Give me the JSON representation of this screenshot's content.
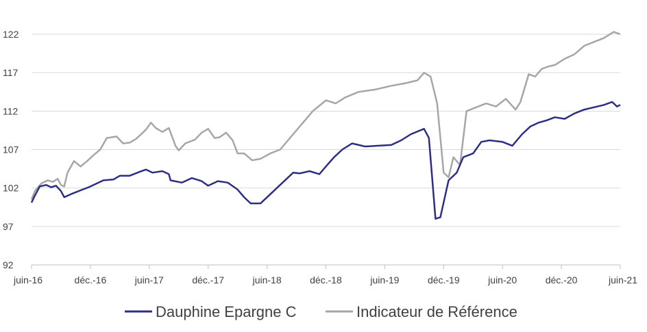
{
  "chart_data": {
    "type": "line",
    "title": "",
    "xlabel": "",
    "ylabel": "",
    "ylim": [
      92,
      122
    ],
    "yticks": [
      92,
      97,
      102,
      107,
      112,
      117,
      122
    ],
    "x_tick_labels": [
      "juin-16",
      "déc.-16",
      "juin-17",
      "déc.-17",
      "juin-18",
      "déc.-18",
      "juin-19",
      "déc.-19",
      "juin-20",
      "déc.-20",
      "juin-21"
    ],
    "grid": "horizontal",
    "legend_position": "bottom",
    "series": [
      {
        "name": "Dauphine Epargne C",
        "color": "#2b2e83",
        "points": [
          [
            0,
            100.1
          ],
          [
            0.1,
            101.0
          ],
          [
            0.25,
            102.2
          ],
          [
            0.45,
            102.4
          ],
          [
            0.6,
            102.1
          ],
          [
            0.75,
            102.3
          ],
          [
            0.9,
            101.6
          ],
          [
            1.0,
            100.8
          ],
          [
            1.2,
            101.2
          ],
          [
            1.5,
            101.7
          ],
          [
            1.75,
            102.1
          ],
          [
            2.0,
            102.6
          ],
          [
            2.2,
            103.0
          ],
          [
            2.5,
            103.1
          ],
          [
            2.7,
            103.6
          ],
          [
            3.0,
            103.6
          ],
          [
            3.3,
            104.1
          ],
          [
            3.5,
            104.4
          ],
          [
            3.7,
            104.0
          ],
          [
            4.0,
            104.2
          ],
          [
            4.2,
            103.8
          ],
          [
            4.25,
            103.0
          ],
          [
            4.6,
            102.7
          ],
          [
            4.9,
            103.3
          ],
          [
            5.2,
            102.9
          ],
          [
            5.4,
            102.3
          ],
          [
            5.7,
            102.9
          ],
          [
            6.0,
            102.7
          ],
          [
            6.2,
            102.1
          ],
          [
            6.3,
            101.8
          ],
          [
            6.5,
            100.8
          ],
          [
            6.7,
            100.0
          ],
          [
            7.0,
            100.0
          ],
          [
            7.3,
            101.2
          ],
          [
            7.6,
            102.4
          ],
          [
            8.0,
            104.0
          ],
          [
            8.2,
            103.9
          ],
          [
            8.5,
            104.2
          ],
          [
            8.8,
            103.8
          ],
          [
            9.0,
            104.8
          ],
          [
            9.25,
            106.0
          ],
          [
            9.5,
            107.0
          ],
          [
            9.8,
            107.8
          ],
          [
            10.2,
            107.4
          ],
          [
            10.6,
            107.5
          ],
          [
            11.0,
            107.6
          ],
          [
            11.3,
            108.2
          ],
          [
            11.6,
            109.0
          ],
          [
            12.0,
            109.7
          ],
          [
            12.15,
            108.5
          ],
          [
            12.35,
            98.0
          ],
          [
            12.5,
            98.2
          ],
          [
            12.75,
            103.0
          ],
          [
            13.0,
            104.0
          ],
          [
            13.2,
            106.0
          ],
          [
            13.5,
            106.5
          ],
          [
            13.75,
            108.0
          ],
          [
            14.0,
            108.2
          ],
          [
            14.4,
            108.0
          ],
          [
            14.7,
            107.5
          ],
          [
            15.0,
            109.0
          ],
          [
            15.25,
            110.0
          ],
          [
            15.5,
            110.5
          ],
          [
            15.75,
            110.8
          ],
          [
            16.0,
            111.2
          ],
          [
            16.3,
            111.0
          ],
          [
            16.6,
            111.7
          ],
          [
            16.9,
            112.2
          ],
          [
            17.2,
            112.5
          ],
          [
            17.5,
            112.8
          ],
          [
            17.75,
            113.2
          ],
          [
            17.9,
            112.6
          ],
          [
            18.0,
            112.8
          ]
        ]
      },
      {
        "name": "Indicateur de Référence",
        "color": "#a6a6a6",
        "points": [
          [
            0,
            100.5
          ],
          [
            0.1,
            101.6
          ],
          [
            0.3,
            102.6
          ],
          [
            0.5,
            103.0
          ],
          [
            0.65,
            102.8
          ],
          [
            0.8,
            103.2
          ],
          [
            0.9,
            102.4
          ],
          [
            1.0,
            102.2
          ],
          [
            1.1,
            104.0
          ],
          [
            1.3,
            105.5
          ],
          [
            1.5,
            104.8
          ],
          [
            1.7,
            105.5
          ],
          [
            1.9,
            106.3
          ],
          [
            2.1,
            107.0
          ],
          [
            2.3,
            108.5
          ],
          [
            2.6,
            108.7
          ],
          [
            2.8,
            107.8
          ],
          [
            3.0,
            107.9
          ],
          [
            3.2,
            108.4
          ],
          [
            3.5,
            109.6
          ],
          [
            3.65,
            110.5
          ],
          [
            3.8,
            109.8
          ],
          [
            4.0,
            109.3
          ],
          [
            4.2,
            109.8
          ],
          [
            4.4,
            107.5
          ],
          [
            4.5,
            106.9
          ],
          [
            4.7,
            107.8
          ],
          [
            5.0,
            108.3
          ],
          [
            5.2,
            109.2
          ],
          [
            5.4,
            109.7
          ],
          [
            5.6,
            108.5
          ],
          [
            5.75,
            108.6
          ],
          [
            5.95,
            109.2
          ],
          [
            6.15,
            108.2
          ],
          [
            6.3,
            106.5
          ],
          [
            6.5,
            106.5
          ],
          [
            6.75,
            105.6
          ],
          [
            7.0,
            105.8
          ],
          [
            7.3,
            106.5
          ],
          [
            7.6,
            107.0
          ],
          [
            8.0,
            109.0
          ],
          [
            8.3,
            110.5
          ],
          [
            8.6,
            112.0
          ],
          [
            9.0,
            113.4
          ],
          [
            9.3,
            113.0
          ],
          [
            9.6,
            113.8
          ],
          [
            10.0,
            114.5
          ],
          [
            10.5,
            114.8
          ],
          [
            11.0,
            115.3
          ],
          [
            11.4,
            115.6
          ],
          [
            11.8,
            116.0
          ],
          [
            12.0,
            117.0
          ],
          [
            12.2,
            116.5
          ],
          [
            12.4,
            113.0
          ],
          [
            12.6,
            104.0
          ],
          [
            12.75,
            103.4
          ],
          [
            12.9,
            106.0
          ],
          [
            13.1,
            105.0
          ],
          [
            13.3,
            112.0
          ],
          [
            13.6,
            112.5
          ],
          [
            13.9,
            113.0
          ],
          [
            14.2,
            112.6
          ],
          [
            14.5,
            113.6
          ],
          [
            14.8,
            112.2
          ],
          [
            14.95,
            113.2
          ],
          [
            15.2,
            116.8
          ],
          [
            15.4,
            116.5
          ],
          [
            15.6,
            117.5
          ],
          [
            15.8,
            117.8
          ],
          [
            16.0,
            118.0
          ],
          [
            16.3,
            118.8
          ],
          [
            16.6,
            119.4
          ],
          [
            16.9,
            120.5
          ],
          [
            17.2,
            121.0
          ],
          [
            17.5,
            121.5
          ],
          [
            17.8,
            122.3
          ],
          [
            18.0,
            122.0
          ]
        ]
      }
    ]
  }
}
